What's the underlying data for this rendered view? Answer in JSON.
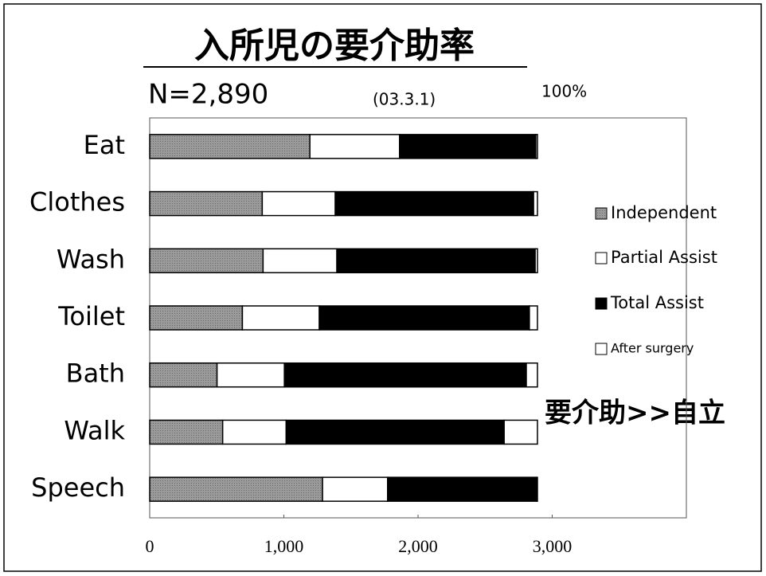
{
  "chart_data": {
    "type": "stacked-bar-horizontal",
    "title": "入所児の要介助率",
    "subtitle": "N=2,890",
    "date": "(03.3.1)",
    "annotations": [
      "100%",
      "要介助>>自立"
    ],
    "categories": [
      "Eat",
      "Clothes",
      "Wash",
      "Toilet",
      "Bath",
      "Walk",
      "Speech"
    ],
    "series": [
      {
        "name": "Independent",
        "color": "#9a9a9a",
        "values": [
          1194,
          839,
          845,
          691,
          502,
          544,
          1288
        ]
      },
      {
        "name": "Partial Assist",
        "color": "#ffffff",
        "values": [
          668,
          544,
          550,
          573,
          502,
          473,
          485
        ]
      },
      {
        "name": "Total Assist",
        "color": "#000000",
        "values": [
          1016,
          1478,
          1478,
          1566,
          1803,
          1625,
          1111
        ]
      },
      {
        "name": "After surgery",
        "color": "#ffffff",
        "values": [
          12,
          29,
          17,
          60,
          83,
          248,
          6
        ]
      }
    ],
    "xlim": [
      0,
      4000
    ],
    "xticks": [
      0,
      {
        "value": 1000,
        "label": "1,000"
      },
      {
        "value": 2000,
        "label": "2,000"
      },
      {
        "value": 3000,
        "label": "3,000"
      }
    ],
    "legend": "right"
  }
}
